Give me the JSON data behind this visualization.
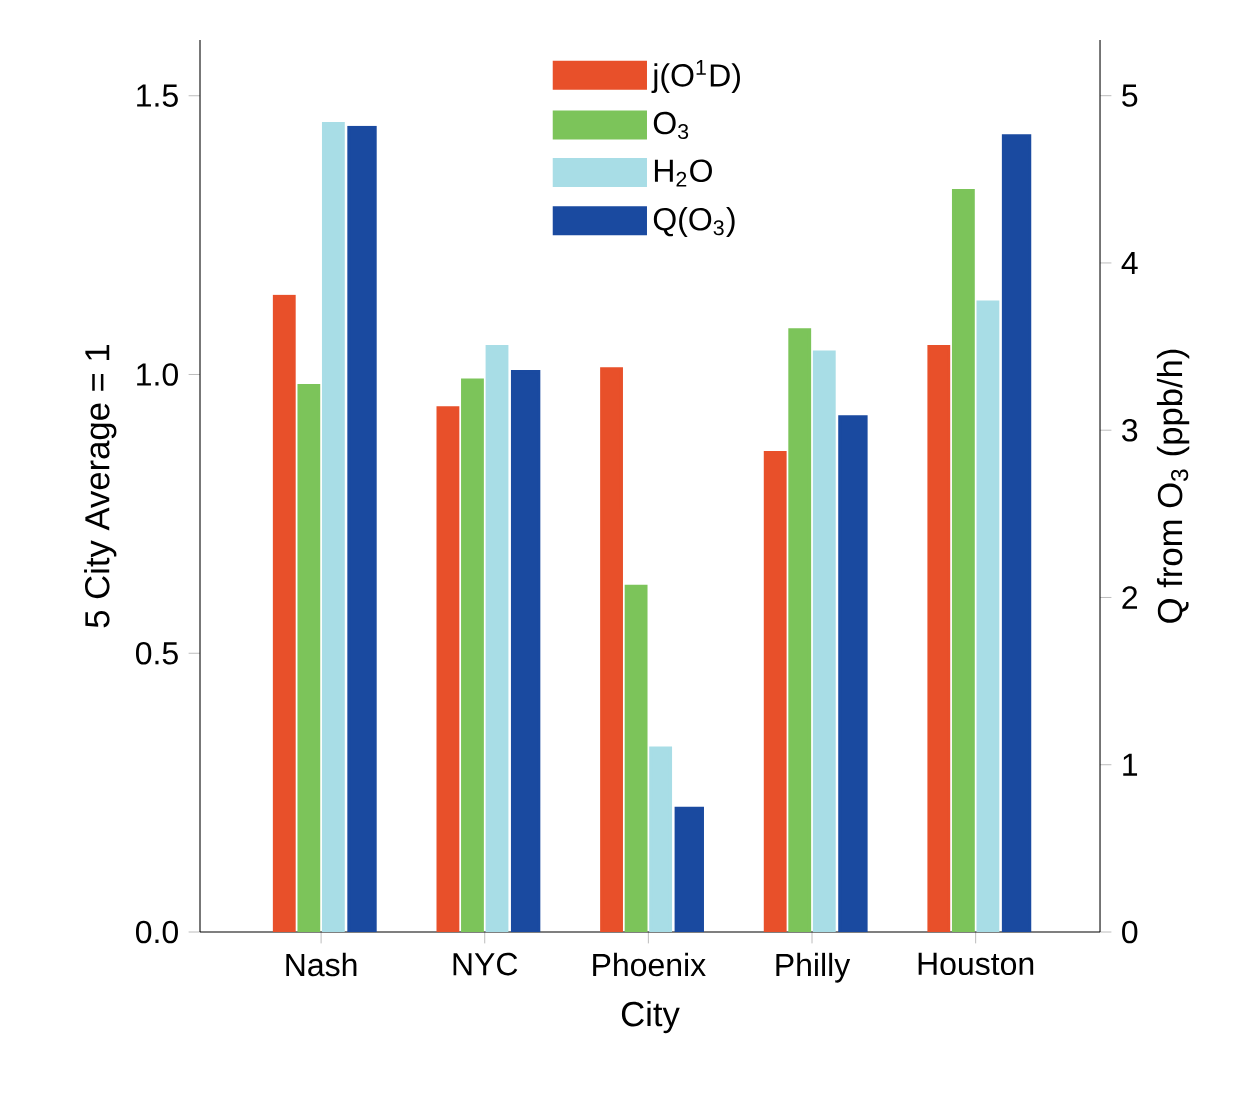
{
  "chart_data": {
    "type": "bar",
    "xlabel": "City",
    "ylabel": "5 City Average = 1",
    "y2label": "Q from O$_{3}$  (ppb/h)",
    "categories": [
      "Nash",
      "NYC",
      "Phoenix",
      "Philly",
      "Houston"
    ],
    "series": [
      {
        "name": "j(O$^{1}$D)",
        "color": "#e8502a",
        "values": [
          1.14,
          0.94,
          1.01,
          0.86,
          1.05
        ]
      },
      {
        "name": "O$_{3}$",
        "color": "#7cc45a",
        "values": [
          0.98,
          0.99,
          0.62,
          1.08,
          1.33
        ]
      },
      {
        "name": "H$_{2}$O",
        "color": "#a8dde6",
        "values": [
          1.45,
          1.05,
          0.33,
          1.04,
          1.13
        ]
      },
      {
        "name": "Q(O$_{3}$)",
        "color": "#1a4aa0",
        "axis": "y2",
        "values": [
          4.81,
          3.35,
          0.74,
          3.08,
          4.76
        ]
      }
    ],
    "ylim": [
      0,
      1.6
    ],
    "yticks": [
      {
        "value": 0,
        "label": "0.0"
      },
      {
        "value": 0.5,
        "label": "0.5"
      },
      {
        "value": 1,
        "label": "1.0"
      },
      {
        "value": 1.5,
        "label": "1.5"
      }
    ],
    "y2lim": [
      0,
      5.333
    ],
    "y2ticks": [
      0,
      1,
      2,
      3,
      4,
      5
    ],
    "legend": "top"
  }
}
